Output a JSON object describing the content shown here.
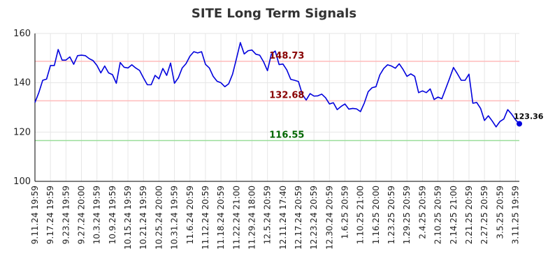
{
  "title": "SITE Long Term Signals",
  "colors": {
    "line": "#0000dd",
    "grid": "#e6e6e6",
    "upper_line": "#ffbbbb",
    "lower_line": "#99dd99",
    "upper_label": "#880000",
    "middle_label": "#880000",
    "lower_label": "#006600"
  },
  "chart_data": {
    "type": "line",
    "title": "SITE Long Term Signals",
    "xlabel": "",
    "ylabel": "",
    "ylim": [
      100,
      160
    ],
    "yticks": [
      100,
      120,
      140,
      160
    ],
    "grid": true,
    "x_tick_labels": [
      "9.11.24 19:59",
      "9.17.24 19:59",
      "9.23.24 19:59",
      "9.27.24 20:00",
      "10.3.24 19:59",
      "10.9.24 19:59",
      "10.15.24 19:59",
      "10.21.24 19:59",
      "10.25.24 20:00",
      "10.31.24 19:59",
      "11.6.24 20:59",
      "11.12.24 20:59",
      "11.18.24 20:59",
      "11.22.24 21:00",
      "11.29.24 18:00",
      "12.5.24 20:59",
      "12.11.24 17:40",
      "12.17.24 20:59",
      "12.23.24 20:59",
      "12.30.24 20:59",
      "1.6.25 20:59",
      "1.10.25 21:00",
      "1.16.25 20:00",
      "1.23.25 20:59",
      "1.29.25 20:59",
      "2.4.25 20:59",
      "2.10.25 20:59",
      "2.14.25 21:00",
      "2.21.25 20:59",
      "2.27.25 20:59",
      "3.5.25 20:59",
      "3.11.25 19:59"
    ],
    "points_per_tick": 4,
    "reference_lines": [
      {
        "value": 148.73,
        "label": "148.73",
        "role": "upper"
      },
      {
        "value": 132.68,
        "label": "132.68",
        "role": "middle"
      },
      {
        "value": 116.55,
        "label": "116.55",
        "role": "lower"
      }
    ],
    "last_value_label": "123.36",
    "series": [
      {
        "values": [
          132.0,
          136.0,
          141.0,
          141.5,
          147.0,
          147.0,
          153.5,
          149.2,
          149.2,
          150.5,
          147.5,
          151.0,
          151.2,
          151.0,
          149.8,
          149.0,
          147.0,
          144.0,
          146.8,
          144.0,
          143.3,
          139.8,
          148.2,
          146.3,
          146.0,
          147.3,
          146.0,
          145.0,
          142.0,
          139.2,
          139.2,
          143.0,
          141.6,
          145.8,
          143.0,
          148.0,
          139.8,
          142.0,
          146.0,
          147.8,
          150.8,
          152.6,
          152.1,
          152.6,
          147.5,
          146.0,
          142.6,
          140.6,
          140.0,
          138.4,
          139.6,
          143.5,
          149.8,
          156.3,
          151.7,
          153.0,
          153.3,
          151.6,
          151.2,
          148.5,
          144.9,
          151.6,
          152.9,
          147.4,
          147.6,
          145.2,
          141.4,
          141.0,
          140.5,
          135.3,
          133.0,
          135.6,
          134.6,
          134.7,
          135.4,
          133.9,
          131.4,
          131.9,
          129.1,
          130.4,
          131.4,
          129.3,
          129.6,
          129.4,
          128.3,
          131.8,
          136.4,
          138.0,
          138.4,
          143.2,
          145.8,
          147.3,
          146.8,
          145.9,
          147.7,
          145.4,
          142.6,
          143.6,
          142.6,
          136.0,
          136.7,
          136.0,
          137.5,
          133.2,
          134.2,
          133.5,
          137.6,
          141.8,
          146.2,
          143.7,
          141.0,
          141.0,
          143.5,
          131.7,
          132.0,
          129.6,
          124.7,
          126.6,
          124.5,
          122.1,
          124.3,
          125.3,
          129.1,
          127.3,
          125.0,
          123.36
        ]
      }
    ]
  }
}
